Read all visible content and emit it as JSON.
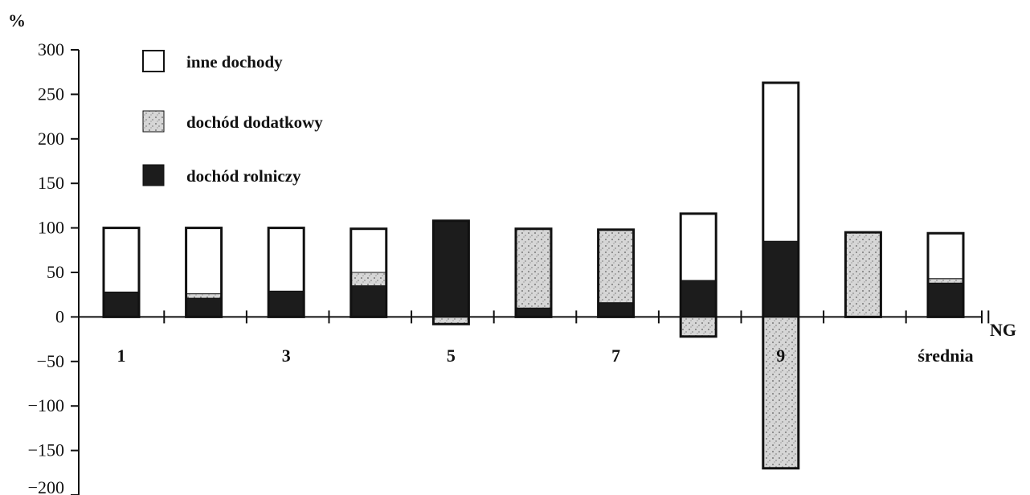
{
  "chart_data": {
    "type": "bar",
    "stacked": true,
    "ylabel": "%",
    "xlabel": "NG",
    "ylim": [
      -200,
      300
    ],
    "yticks": [
      300,
      250,
      200,
      150,
      100,
      50,
      0,
      -50,
      -100,
      -150,
      -200
    ],
    "y_tick_labels": [
      "300",
      "250",
      "200",
      "150",
      "100",
      "50",
      "0",
      "−50",
      "−100",
      "−150",
      "−200"
    ],
    "grid": false,
    "legend_position": "top-left",
    "categories": [
      "1",
      "2",
      "3",
      "4",
      "5",
      "6",
      "7",
      "8",
      "9",
      "10",
      "11"
    ],
    "category_labels": [
      "1",
      "",
      "3",
      "",
      "5",
      "",
      "7",
      "",
      "9",
      "",
      "średnia"
    ],
    "series": [
      {
        "name": "dochód rolniczy",
        "fill": "#1c1c1c",
        "values": [
          28,
          21,
          29,
          35,
          108,
          10,
          16,
          41,
          85,
          0,
          38
        ]
      },
      {
        "name": "dochód dodatkowy",
        "fill": "#d2d2d2",
        "values": [
          0,
          5,
          0,
          15,
          -8,
          89,
          82,
          -22,
          -170,
          95,
          5
        ]
      },
      {
        "name": "inne dochody",
        "fill": "#ffffff",
        "values": [
          72,
          74,
          71,
          49,
          0,
          0,
          0,
          75,
          178,
          0,
          51
        ]
      }
    ]
  }
}
